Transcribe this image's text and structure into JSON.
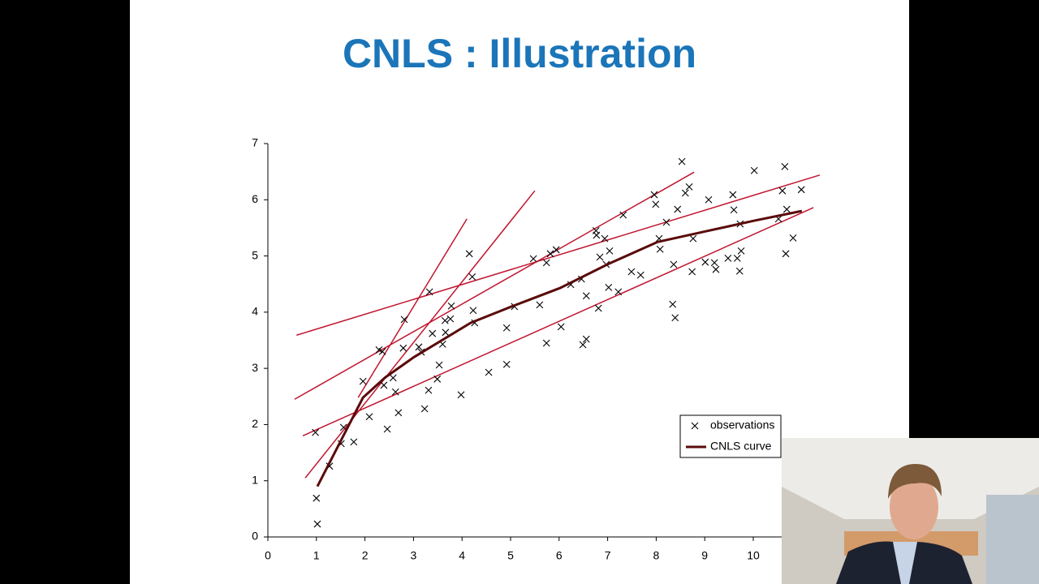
{
  "chart_data": {
    "type": "scatter",
    "title": "CNLS : Illustration",
    "xlim": [
      0,
      12
    ],
    "xticks": [
      0,
      1,
      2,
      3,
      4,
      5,
      6,
      7,
      8,
      9,
      10
    ],
    "ylim": [
      0,
      7
    ],
    "yticks": [
      0,
      1,
      2,
      3,
      4,
      5,
      6,
      7
    ],
    "grid": false,
    "legend": "lower-right",
    "series": [
      {
        "name": "observations",
        "color": "#000000",
        "marker": "x",
        "x": [
          0.98,
          1.0,
          1.02,
          1.27,
          1.56,
          1.51,
          1.77,
          1.96,
          2.09,
          2.29,
          2.36,
          2.39,
          2.46,
          2.58,
          2.63,
          2.69,
          2.81,
          2.79,
          3.11,
          3.16,
          3.23,
          3.31,
          3.33,
          3.39,
          3.49,
          3.53,
          3.6,
          3.65,
          3.66,
          3.78,
          3.76,
          3.98,
          4.15,
          4.21,
          4.23,
          4.26,
          4.55,
          4.92,
          4.92,
          5.08,
          5.47,
          5.6,
          5.74,
          5.74,
          5.82,
          5.94,
          6.04,
          6.24,
          6.46,
          6.49,
          6.56,
          6.56,
          6.76,
          6.77,
          6.81,
          6.84,
          6.94,
          6.97,
          7.04,
          7.02,
          7.22,
          7.32,
          7.49,
          7.68,
          7.96,
          7.99,
          8.06,
          8.08,
          8.21,
          8.34,
          8.36,
          8.39,
          8.44,
          8.53,
          8.6,
          8.68,
          8.74,
          8.76,
          9.01,
          9.08,
          9.2,
          9.23,
          9.48,
          9.58,
          9.6,
          9.67,
          9.72,
          9.73,
          9.75,
          10.02,
          10.52,
          10.6,
          10.65,
          10.67,
          10.69,
          10.82,
          10.99
        ],
        "values": [
          1.86,
          0.69,
          0.23,
          1.26,
          1.95,
          1.66,
          1.69,
          2.77,
          2.14,
          3.33,
          3.3,
          2.7,
          1.92,
          2.83,
          2.58,
          2.21,
          3.87,
          3.36,
          3.38,
          3.29,
          2.28,
          2.61,
          4.36,
          3.62,
          2.81,
          3.06,
          3.43,
          3.85,
          3.64,
          4.11,
          3.88,
          2.53,
          5.04,
          4.63,
          4.03,
          3.81,
          2.93,
          3.72,
          3.07,
          4.1,
          4.95,
          4.13,
          4.88,
          3.45,
          5.04,
          5.11,
          3.74,
          4.49,
          4.59,
          3.42,
          3.52,
          4.29,
          5.45,
          5.37,
          4.07,
          4.98,
          5.31,
          4.85,
          5.09,
          4.44,
          4.36,
          5.73,
          4.72,
          4.66,
          6.09,
          5.92,
          5.31,
          5.12,
          5.6,
          4.14,
          4.85,
          3.9,
          5.83,
          6.68,
          6.12,
          6.23,
          4.72,
          5.31,
          4.89,
          6.0,
          4.88,
          4.76,
          4.96,
          6.09,
          5.82,
          4.96,
          4.73,
          5.57,
          5.09,
          6.52,
          5.66,
          6.16,
          6.59,
          5.04,
          5.83,
          5.32,
          6.18
        ]
      },
      {
        "name": "CNLS curve",
        "color": "#5a0a0a",
        "marker": "line",
        "x": [
          1.02,
          1.96,
          2.42,
          3.01,
          4.18,
          5.02,
          6.02,
          7.02,
          8.03,
          9.03,
          10.03,
          11.0
        ],
        "values": [
          0.9,
          2.48,
          2.84,
          3.2,
          3.81,
          4.1,
          4.43,
          4.86,
          5.25,
          5.44,
          5.63,
          5.8
        ]
      }
    ],
    "segments": [
      {
        "color": "#c0152f",
        "x": [
          0.59,
          11.37
        ],
        "values": [
          3.59,
          6.44
        ]
      },
      {
        "color": "#c0152f",
        "x": [
          0.55,
          8.78
        ],
        "values": [
          2.45,
          6.49
        ]
      },
      {
        "color": "#c0152f",
        "x": [
          0.72,
          11.24
        ],
        "values": [
          1.8,
          5.86
        ]
      },
      {
        "color": "#c0152f",
        "x": [
          0.77,
          5.5
        ],
        "values": [
          1.05,
          6.16
        ]
      },
      {
        "color": "#c0152f",
        "x": [
          1.86,
          4.1
        ],
        "values": [
          2.48,
          5.66
        ]
      }
    ]
  }
}
